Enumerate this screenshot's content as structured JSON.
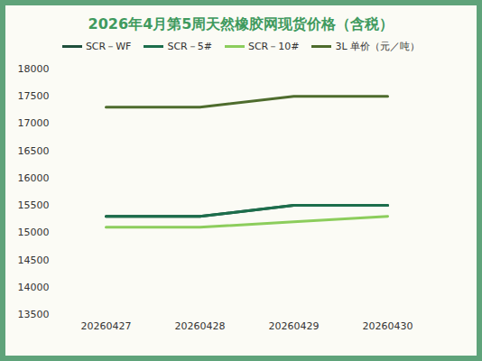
{
  "chart_data": {
    "type": "line",
    "title": "2026年4月第5周天然橡胶网现货价格（含税）",
    "categories": [
      "20260427",
      "20260428",
      "20260429",
      "20260430"
    ],
    "series": [
      {
        "name": "SCR－WF",
        "color": "#1f4f3b",
        "values": [
          15300,
          15300,
          15500,
          15500
        ]
      },
      {
        "name": "SCR－5#",
        "color": "#1c6e4c",
        "values": [
          15300,
          15300,
          15500,
          15500
        ]
      },
      {
        "name": "SCR－10#",
        "color": "#8ccd5c",
        "values": [
          15100,
          15100,
          15200,
          15300
        ]
      },
      {
        "name": "3L 单价（元／吨）",
        "color": "#4e6c2d",
        "values": [
          17300,
          17300,
          17500,
          17500
        ]
      }
    ],
    "ylim": [
      13500,
      18000
    ],
    "yticks": [
      13500,
      14000,
      14500,
      15000,
      15500,
      16000,
      16500,
      17000,
      17500,
      18000
    ],
    "grid": false,
    "legend": "top"
  }
}
